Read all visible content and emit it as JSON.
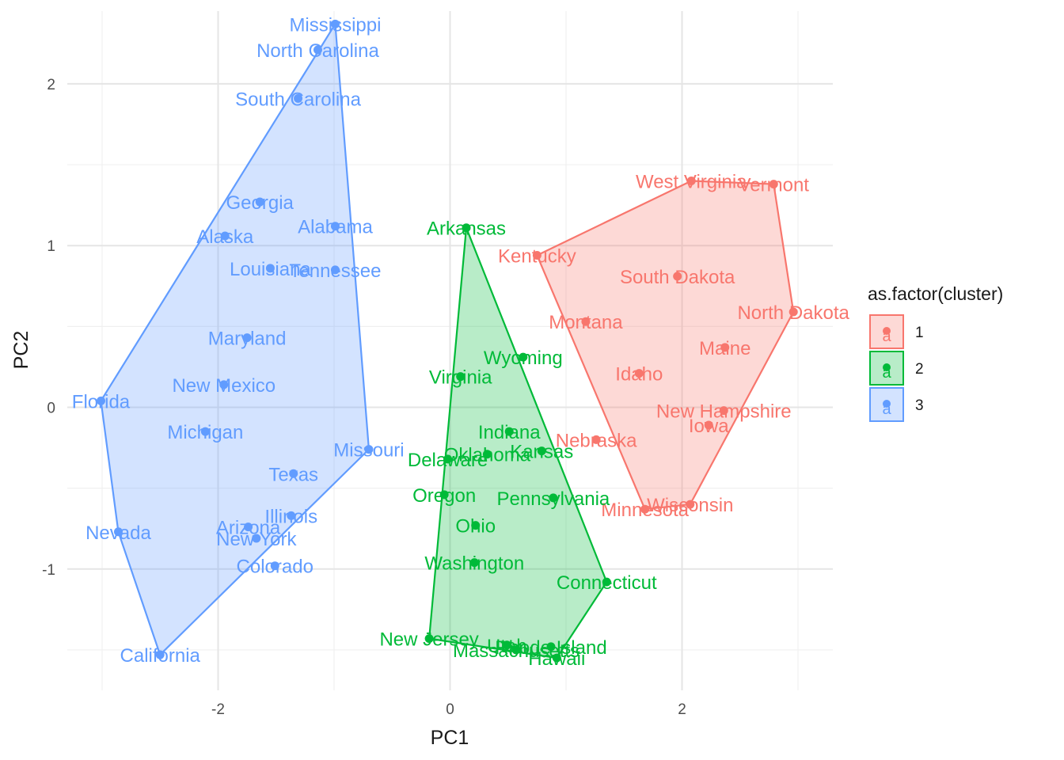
{
  "chart_data": {
    "type": "scatter",
    "title": "",
    "xlabel": "PC1",
    "ylabel": "PC2",
    "xlim": [
      -3.3,
      3.3
    ],
    "ylim": [
      -1.75,
      2.45
    ],
    "x_ticks": [
      -2,
      0,
      2
    ],
    "y_ticks": [
      -1,
      0,
      1,
      2
    ],
    "x_tick_labels": [
      "-2",
      "0",
      "2"
    ],
    "y_tick_labels": [
      "-1",
      "0",
      "1",
      "2"
    ],
    "grid": true,
    "legend": {
      "title": "as.factor(cluster)",
      "placement": "right",
      "glyph": "a"
    },
    "series": [
      {
        "name": "1",
        "color": "#F8766D",
        "hull": [
          "Kentucky",
          "West Virginia",
          "Vermont",
          "North Dakota",
          "Wisconsin",
          "Minnesota"
        ],
        "points": [
          {
            "label": "West Virginia",
            "x": 2.08,
            "y": 1.4
          },
          {
            "label": "Vermont",
            "x": 2.79,
            "y": 1.38
          },
          {
            "label": "Kentucky",
            "x": 0.75,
            "y": 0.94
          },
          {
            "label": "South Dakota",
            "x": 1.96,
            "y": 0.81
          },
          {
            "label": "North Dakota",
            "x": 2.96,
            "y": 0.59
          },
          {
            "label": "Montana",
            "x": 1.17,
            "y": 0.53
          },
          {
            "label": "Maine",
            "x": 2.37,
            "y": 0.37
          },
          {
            "label": "Idaho",
            "x": 1.63,
            "y": 0.21
          },
          {
            "label": "New Hampshire",
            "x": 2.36,
            "y": -0.02
          },
          {
            "label": "Iowa",
            "x": 2.23,
            "y": -0.11
          },
          {
            "label": "Nebraska",
            "x": 1.26,
            "y": -0.2
          },
          {
            "label": "Wisconsin",
            "x": 2.07,
            "y": -0.6
          },
          {
            "label": "Minnesota",
            "x": 1.68,
            "y": -0.63
          }
        ]
      },
      {
        "name": "2",
        "color": "#00BA38",
        "hull": [
          "Arkansas",
          "Connecticut",
          "Hawaii",
          "New Jersey"
        ],
        "points": [
          {
            "label": "Arkansas",
            "x": 0.14,
            "y": 1.11
          },
          {
            "label": "Wyoming",
            "x": 0.63,
            "y": 0.31
          },
          {
            "label": "Virginia",
            "x": 0.09,
            "y": 0.19
          },
          {
            "label": "Indiana",
            "x": 0.51,
            "y": -0.15
          },
          {
            "label": "Kansas",
            "x": 0.79,
            "y": -0.27
          },
          {
            "label": "Oklahoma",
            "x": 0.32,
            "y": -0.29
          },
          {
            "label": "Delaware",
            "x": -0.02,
            "y": -0.32
          },
          {
            "label": "Oregon",
            "x": -0.05,
            "y": -0.54
          },
          {
            "label": "Pennsylvania",
            "x": 0.89,
            "y": -0.56
          },
          {
            "label": "Ohio",
            "x": 0.22,
            "y": -0.73
          },
          {
            "label": "Washington",
            "x": 0.21,
            "y": -0.96
          },
          {
            "label": "Connecticut",
            "x": 1.35,
            "y": -1.08
          },
          {
            "label": "New Jersey",
            "x": -0.18,
            "y": -1.43
          },
          {
            "label": "Utah",
            "x": 0.49,
            "y": -1.47
          },
          {
            "label": "Massachusetts",
            "x": 0.57,
            "y": -1.5
          },
          {
            "label": "Rhode Island",
            "x": 0.87,
            "y": -1.48
          },
          {
            "label": "Hawaii",
            "x": 0.92,
            "y": -1.55
          }
        ]
      },
      {
        "name": "3",
        "color": "#619CFF",
        "hull": [
          "Florida",
          "Mississippi",
          "Missouri",
          "California",
          "Nevada"
        ],
        "points": [
          {
            "label": "Mississippi",
            "x": -0.99,
            "y": 2.37
          },
          {
            "label": "North Carolina",
            "x": -1.14,
            "y": 2.21
          },
          {
            "label": "South Carolina",
            "x": -1.31,
            "y": 1.91
          },
          {
            "label": "Georgia",
            "x": -1.64,
            "y": 1.27
          },
          {
            "label": "Alabama",
            "x": -0.99,
            "y": 1.12
          },
          {
            "label": "Alaska",
            "x": -1.94,
            "y": 1.06
          },
          {
            "label": "Louisiana",
            "x": -1.55,
            "y": 0.86
          },
          {
            "label": "Tennessee",
            "x": -0.99,
            "y": 0.85
          },
          {
            "label": "Maryland",
            "x": -1.75,
            "y": 0.43
          },
          {
            "label": "New Mexico",
            "x": -1.95,
            "y": 0.14
          },
          {
            "label": "Florida",
            "x": -3.01,
            "y": 0.04
          },
          {
            "label": "Michigan",
            "x": -2.11,
            "y": -0.15
          },
          {
            "label": "Missouri",
            "x": -0.7,
            "y": -0.26
          },
          {
            "label": "Texas",
            "x": -1.35,
            "y": -0.41
          },
          {
            "label": "Illinois",
            "x": -1.37,
            "y": -0.67
          },
          {
            "label": "Arizona",
            "x": -1.74,
            "y": -0.74
          },
          {
            "label": "New York",
            "x": -1.67,
            "y": -0.81
          },
          {
            "label": "Nevada",
            "x": -2.86,
            "y": -0.77
          },
          {
            "label": "Colorado",
            "x": -1.51,
            "y": -0.98
          },
          {
            "label": "California",
            "x": -2.5,
            "y": -1.53
          }
        ]
      }
    ]
  }
}
